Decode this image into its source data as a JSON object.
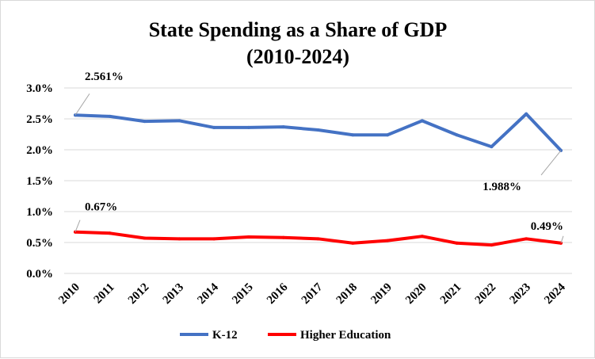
{
  "chart_data": {
    "type": "line",
    "title": "State Spending as a Share of GDP",
    "subtitle": "(2010-2024)",
    "xlabel": "",
    "ylabel": "",
    "categories": [
      "2010",
      "2011",
      "2012",
      "2013",
      "2014",
      "2015",
      "2016",
      "2017",
      "2018",
      "2019",
      "2020",
      "2021",
      "2022",
      "2023",
      "2024"
    ],
    "ylim": [
      0,
      3.0
    ],
    "yticks": [
      0.0,
      0.5,
      1.0,
      1.5,
      2.0,
      2.5,
      3.0
    ],
    "ytick_labels": [
      "0.0%",
      "0.5%",
      "1.0%",
      "1.5%",
      "2.0%",
      "2.5%",
      "3.0%"
    ],
    "grid": "horizontal",
    "legend_position": "bottom",
    "series": [
      {
        "name": "K-12",
        "color": "#4472c4",
        "values": [
          2.561,
          2.54,
          2.46,
          2.47,
          2.36,
          2.36,
          2.37,
          2.32,
          2.24,
          2.24,
          2.47,
          2.24,
          2.05,
          2.58,
          1.988
        ]
      },
      {
        "name": "Higher Education",
        "color": "#ff0000",
        "values": [
          0.67,
          0.65,
          0.57,
          0.56,
          0.56,
          0.59,
          0.58,
          0.56,
          0.49,
          0.53,
          0.6,
          0.49,
          0.46,
          0.56,
          0.49
        ]
      }
    ],
    "annotations": [
      {
        "series": 0,
        "index": 0,
        "text": "2.561%"
      },
      {
        "series": 0,
        "index": 14,
        "text": "1.988%"
      },
      {
        "series": 1,
        "index": 0,
        "text": "0.67%"
      },
      {
        "series": 1,
        "index": 14,
        "text": "0.49%"
      }
    ]
  }
}
